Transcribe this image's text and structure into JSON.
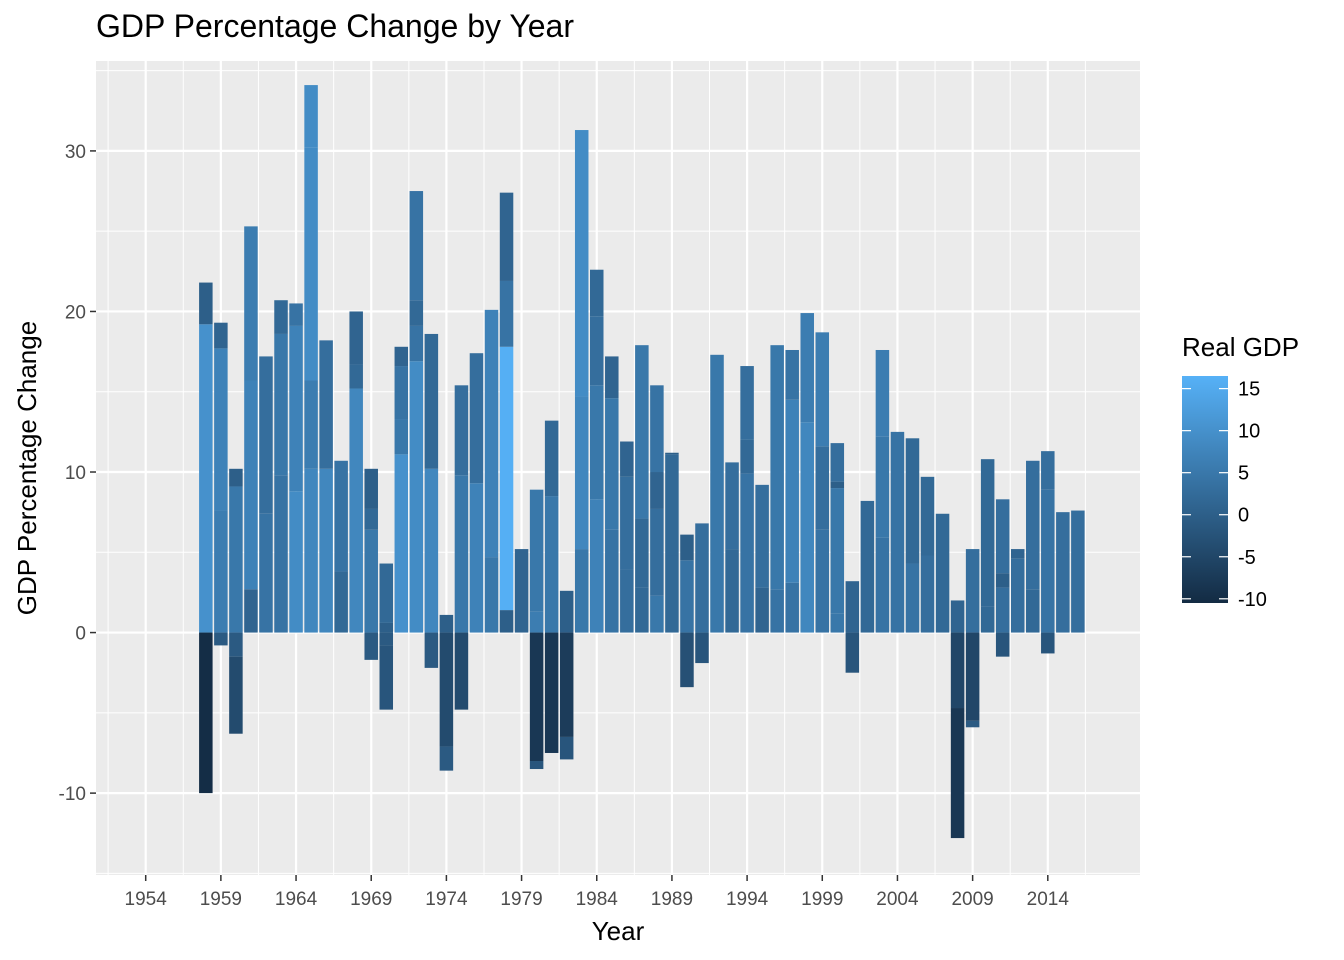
{
  "chart_data": {
    "type": "bar",
    "stacked": true,
    "title": "GDP Percentage Change by Year",
    "xlabel": "Year",
    "ylabel": "GDP Percentage Change",
    "xlim": [
      1950.3,
      1970.7
    ],
    "ylim": [
      -15.1,
      35.6
    ],
    "x_ticks": [
      1954,
      1959,
      1964,
      1969,
      1974,
      1979,
      1984,
      1989,
      1994,
      1999,
      2004,
      2009,
      2014
    ],
    "y_ticks": [
      -10,
      0,
      10,
      20,
      30
    ],
    "grid": true,
    "legend": {
      "title": "Real GDP",
      "position": "right",
      "type": "colorbar",
      "range": [
        -10.5,
        16.5
      ],
      "ticks": [
        15,
        10,
        5,
        0,
        -5,
        -10
      ],
      "low_color": "#132b43",
      "high_color": "#56b1f7"
    },
    "bars": [
      {
        "year": 1958,
        "segments": [
          {
            "value": 19.2,
            "fill": 10
          },
          {
            "value": 2.6,
            "fill": 0
          },
          {
            "value": -10.0,
            "fill": -10
          }
        ]
      },
      {
        "year": 1959,
        "segments": [
          {
            "value": 7.6,
            "fill": 6
          },
          {
            "value": 10.1,
            "fill": 7
          },
          {
            "value": 1.6,
            "fill": 1
          },
          {
            "value": -0.8,
            "fill": -1
          }
        ]
      },
      {
        "year": 1960,
        "segments": [
          {
            "value": 9.1,
            "fill": 5
          },
          {
            "value": 1.1,
            "fill": 0
          },
          {
            "value": -1.5,
            "fill": -1
          },
          {
            "value": -4.8,
            "fill": -4
          }
        ]
      },
      {
        "year": 1961,
        "segments": [
          {
            "value": 2.7,
            "fill": 1
          },
          {
            "value": 13.0,
            "fill": 7
          },
          {
            "value": 9.6,
            "fill": 6
          }
        ]
      },
      {
        "year": 1962,
        "segments": [
          {
            "value": 7.4,
            "fill": 4
          },
          {
            "value": 9.8,
            "fill": 3
          }
        ]
      },
      {
        "year": 1963,
        "segments": [
          {
            "value": 9.8,
            "fill": 4
          },
          {
            "value": 8.8,
            "fill": 5
          },
          {
            "value": 2.1,
            "fill": 2
          }
        ]
      },
      {
        "year": 1964,
        "segments": [
          {
            "value": 8.8,
            "fill": 9
          },
          {
            "value": 10.3,
            "fill": 7
          },
          {
            "value": 1.4,
            "fill": 4
          }
        ]
      },
      {
        "year": 1965,
        "segments": [
          {
            "value": 10.2,
            "fill": 8
          },
          {
            "value": 5.5,
            "fill": 6
          },
          {
            "value": 14.5,
            "fill": 9
          },
          {
            "value": 3.9,
            "fill": 9
          }
        ]
      },
      {
        "year": 1966,
        "segments": [
          {
            "value": 10.2,
            "fill": 8
          },
          {
            "value": 8.0,
            "fill": 3
          }
        ]
      },
      {
        "year": 1967,
        "segments": [
          {
            "value": 3.8,
            "fill": 2
          },
          {
            "value": 6.9,
            "fill": 4
          }
        ]
      },
      {
        "year": 1968,
        "segments": [
          {
            "value": 15.2,
            "fill": 8
          },
          {
            "value": 1.5,
            "fill": 2
          },
          {
            "value": 3.3,
            "fill": 1
          }
        ]
      },
      {
        "year": 1969,
        "segments": [
          {
            "value": 6.4,
            "fill": 5
          },
          {
            "value": 1.3,
            "fill": 2
          },
          {
            "value": 2.5,
            "fill": 0
          },
          {
            "value": -1.7,
            "fill": -1
          }
        ]
      },
      {
        "year": 1970,
        "segments": [
          {
            "value": 0.6,
            "fill": 0
          },
          {
            "value": 3.7,
            "fill": 2
          },
          {
            "value": -0.8,
            "fill": -1
          },
          {
            "value": -4.0,
            "fill": -2
          }
        ]
      },
      {
        "year": 1971,
        "segments": [
          {
            "value": 11.1,
            "fill": 10
          },
          {
            "value": 2.2,
            "fill": 5
          },
          {
            "value": 3.3,
            "fill": 4
          },
          {
            "value": 1.2,
            "fill": 1
          }
        ]
      },
      {
        "year": 1972,
        "segments": [
          {
            "value": 16.9,
            "fill": 9
          },
          {
            "value": 2.2,
            "fill": 4
          },
          {
            "value": 1.6,
            "fill": 2
          },
          {
            "value": 6.8,
            "fill": 4
          }
        ]
      },
      {
        "year": 1973,
        "segments": [
          {
            "value": 10.2,
            "fill": 8
          },
          {
            "value": 8.4,
            "fill": 2
          },
          {
            "value": -2.2,
            "fill": -1
          }
        ]
      },
      {
        "year": 1974,
        "segments": [
          {
            "value": 1.1,
            "fill": 0
          },
          {
            "value": -7.1,
            "fill": -4
          },
          {
            "value": -1.5,
            "fill": -1
          }
        ]
      },
      {
        "year": 1975,
        "segments": [
          {
            "value": 9.8,
            "fill": 5
          },
          {
            "value": 5.6,
            "fill": 3
          },
          {
            "value": -4.8,
            "fill": -4
          }
        ]
      },
      {
        "year": 1976,
        "segments": [
          {
            "value": 9.3,
            "fill": 7
          },
          {
            "value": 8.1,
            "fill": 3
          }
        ]
      },
      {
        "year": 1977,
        "segments": [
          {
            "value": 4.7,
            "fill": 5
          },
          {
            "value": 15.4,
            "fill": 7
          }
        ]
      },
      {
        "year": 1978,
        "segments": [
          {
            "value": 1.4,
            "fill": 0
          },
          {
            "value": 16.4,
            "fill": 16
          },
          {
            "value": 4.1,
            "fill": 4
          },
          {
            "value": 5.5,
            "fill": 1
          }
        ]
      },
      {
        "year": 1979,
        "segments": [
          {
            "value": 5.2,
            "fill": 1
          }
        ]
      },
      {
        "year": 1980,
        "segments": [
          {
            "value": 1.3,
            "fill": 6
          },
          {
            "value": 7.6,
            "fill": 5
          },
          {
            "value": -8.0,
            "fill": -8
          },
          {
            "value": -0.5,
            "fill": -2
          }
        ]
      },
      {
        "year": 1981,
        "segments": [
          {
            "value": 8.5,
            "fill": 5
          },
          {
            "value": 4.7,
            "fill": 2
          },
          {
            "value": -7.5,
            "fill": -8
          }
        ]
      },
      {
        "year": 1982,
        "segments": [
          {
            "value": 2.6,
            "fill": 0
          },
          {
            "value": -6.5,
            "fill": -7
          },
          {
            "value": -1.4,
            "fill": -2
          }
        ]
      },
      {
        "year": 1983,
        "segments": [
          {
            "value": 5.2,
            "fill": 5
          },
          {
            "value": 9.5,
            "fill": 8
          },
          {
            "value": 16.6,
            "fill": 9
          }
        ]
      },
      {
        "year": 1984,
        "segments": [
          {
            "value": 8.3,
            "fill": 7
          },
          {
            "value": 7.1,
            "fill": 5
          },
          {
            "value": 4.3,
            "fill": 3
          },
          {
            "value": 2.9,
            "fill": 2
          }
        ]
      },
      {
        "year": 1985,
        "segments": [
          {
            "value": 6.4,
            "fill": 4
          },
          {
            "value": 8.2,
            "fill": 5
          },
          {
            "value": 2.6,
            "fill": 1
          }
        ]
      },
      {
        "year": 1986,
        "segments": [
          {
            "value": 3.9,
            "fill": 3
          },
          {
            "value": 5.8,
            "fill": 3
          },
          {
            "value": 2.2,
            "fill": 1
          }
        ]
      },
      {
        "year": 1987,
        "segments": [
          {
            "value": 2.8,
            "fill": 2
          },
          {
            "value": 4.3,
            "fill": 2
          },
          {
            "value": 10.8,
            "fill": 5
          }
        ]
      },
      {
        "year": 1988,
        "segments": [
          {
            "value": 2.3,
            "fill": 5
          },
          {
            "value": 5.4,
            "fill": 3
          },
          {
            "value": 2.3,
            "fill": 1
          },
          {
            "value": 5.4,
            "fill": 4
          }
        ]
      },
      {
        "year": 1989,
        "segments": [
          {
            "value": 4.8,
            "fill": 2
          },
          {
            "value": 6.3,
            "fill": 2
          },
          {
            "value": 0.1,
            "fill": 0
          }
        ]
      },
      {
        "year": 1990,
        "segments": [
          {
            "value": 4.5,
            "fill": 4
          },
          {
            "value": 1.6,
            "fill": 0
          },
          {
            "value": -3.4,
            "fill": -3
          }
        ]
      },
      {
        "year": 1991,
        "segments": [
          {
            "value": 6.8,
            "fill": 3
          },
          {
            "value": -1.9,
            "fill": -2
          }
        ]
      },
      {
        "year": 1992,
        "segments": [
          {
            "value": 17.3,
            "fill": 5
          }
        ]
      },
      {
        "year": 1993,
        "segments": [
          {
            "value": 5.2,
            "fill": 2
          },
          {
            "value": 5.4,
            "fill": 3
          }
        ]
      },
      {
        "year": 1994,
        "segments": [
          {
            "value": 9.9,
            "fill": 4
          },
          {
            "value": 2.1,
            "fill": 2
          },
          {
            "value": 4.6,
            "fill": 3
          }
        ]
      },
      {
        "year": 1995,
        "segments": [
          {
            "value": 2.8,
            "fill": 1
          },
          {
            "value": 6.4,
            "fill": 3
          }
        ]
      },
      {
        "year": 1996,
        "segments": [
          {
            "value": 2.7,
            "fill": 4
          },
          {
            "value": 15.2,
            "fill": 5
          }
        ]
      },
      {
        "year": 1997,
        "segments": [
          {
            "value": 3.1,
            "fill": 4
          },
          {
            "value": 11.4,
            "fill": 7
          },
          {
            "value": 3.1,
            "fill": 4
          }
        ]
      },
      {
        "year": 1998,
        "segments": [
          {
            "value": 13.1,
            "fill": 8
          },
          {
            "value": 6.8,
            "fill": 6
          }
        ]
      },
      {
        "year": 1999,
        "segments": [
          {
            "value": 6.4,
            "fill": 4
          },
          {
            "value": 5.2,
            "fill": 3
          },
          {
            "value": 7.1,
            "fill": 6
          }
        ]
      },
      {
        "year": 2000,
        "segments": [
          {
            "value": 1.2,
            "fill": 5
          },
          {
            "value": 7.8,
            "fill": 5
          },
          {
            "value": 0.4,
            "fill": 0
          },
          {
            "value": 2.4,
            "fill": 3
          }
        ]
      },
      {
        "year": 2001,
        "segments": [
          {
            "value": 3.2,
            "fill": 1
          },
          {
            "value": -2.5,
            "fill": -2
          }
        ]
      },
      {
        "year": 2002,
        "segments": [
          {
            "value": 8.2,
            "fill": 2
          }
        ]
      },
      {
        "year": 2003,
        "segments": [
          {
            "value": 5.9,
            "fill": 4
          },
          {
            "value": 6.3,
            "fill": 5
          },
          {
            "value": 5.4,
            "fill": 6
          }
        ]
      },
      {
        "year": 2004,
        "segments": [
          {
            "value": 12.5,
            "fill": 4
          }
        ]
      },
      {
        "year": 2005,
        "segments": [
          {
            "value": 4.3,
            "fill": 4
          },
          {
            "value": 7.8,
            "fill": 2
          }
        ]
      },
      {
        "year": 2006,
        "segments": [
          {
            "value": 4.8,
            "fill": 3
          },
          {
            "value": 4.9,
            "fill": 2
          }
        ]
      },
      {
        "year": 2007,
        "segments": [
          {
            "value": 7.4,
            "fill": 2
          }
        ]
      },
      {
        "year": 2008,
        "segments": [
          {
            "value": 2.0,
            "fill": 1
          },
          {
            "value": -4.7,
            "fill": -5
          },
          {
            "value": -8.1,
            "fill": -8
          }
        ]
      },
      {
        "year": 2009,
        "segments": [
          {
            "value": 5.2,
            "fill": 3
          },
          {
            "value": -5.5,
            "fill": -5
          },
          {
            "value": -0.4,
            "fill": -1
          }
        ]
      },
      {
        "year": 2010,
        "segments": [
          {
            "value": 1.6,
            "fill": 2
          },
          {
            "value": 9.2,
            "fill": 2
          }
        ]
      },
      {
        "year": 2011,
        "segments": [
          {
            "value": 2.8,
            "fill": 3
          },
          {
            "value": 0.9,
            "fill": 0
          },
          {
            "value": 4.6,
            "fill": 3
          },
          {
            "value": -1.5,
            "fill": -2
          }
        ]
      },
      {
        "year": 2012,
        "segments": [
          {
            "value": 4.6,
            "fill": 3
          },
          {
            "value": 0.6,
            "fill": 1
          }
        ]
      },
      {
        "year": 2013,
        "segments": [
          {
            "value": 2.7,
            "fill": 2
          },
          {
            "value": 8.0,
            "fill": 3
          }
        ]
      },
      {
        "year": 2014,
        "segments": [
          {
            "value": 8.9,
            "fill": 4
          },
          {
            "value": 2.4,
            "fill": 3
          },
          {
            "value": -1.3,
            "fill": -2
          }
        ]
      },
      {
        "year": 2015,
        "segments": [
          {
            "value": 7.5,
            "fill": 3
          }
        ]
      },
      {
        "year": 2016,
        "segments": [
          {
            "value": 7.6,
            "fill": 3
          }
        ]
      }
    ]
  }
}
